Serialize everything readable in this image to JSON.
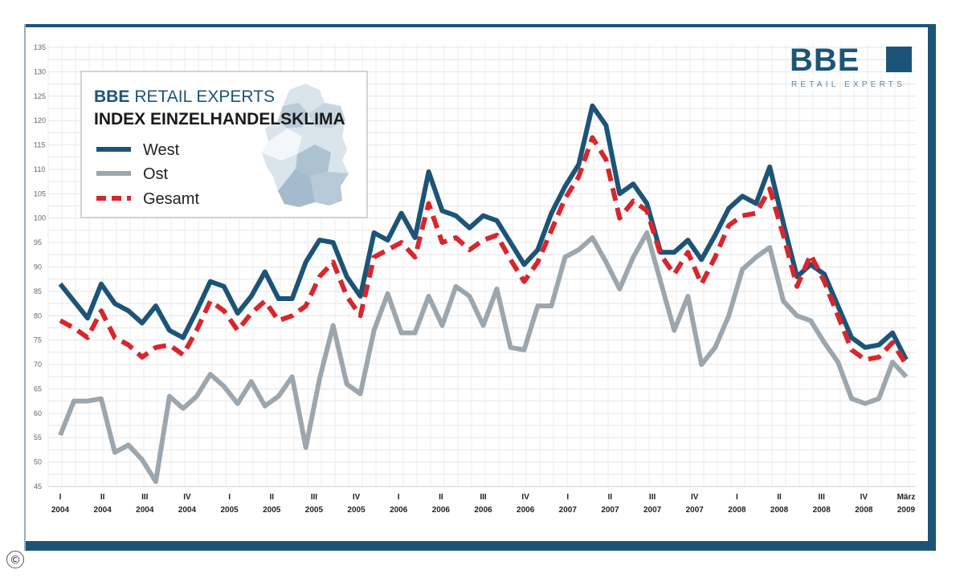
{
  "logo": {
    "brand": "BBE",
    "tagline": "RETAIL EXPERTS"
  },
  "legend": {
    "brand_prefix": "BBE",
    "brand_rest": "RETAIL EXPERTS",
    "title": "INDEX EINZELHANDELSKLIMA"
  },
  "copyright_symbol": "©",
  "colors": {
    "west": "#1c5478",
    "ost": "#9ba6ae",
    "gesamt": "#d8262c",
    "frame": "#1c5478",
    "grid": "#e3e3e3"
  },
  "chart_data": {
    "type": "line",
    "title": "INDEX EINZELHANDELSKLIMA",
    "ylim": [
      45,
      135
    ],
    "yticks": [
      45,
      50,
      55,
      60,
      65,
      70,
      75,
      80,
      85,
      90,
      95,
      100,
      105,
      110,
      115,
      120,
      125,
      130,
      135
    ],
    "grid": true,
    "legend_position": "top-left",
    "x_ticks": [
      {
        "q": "I",
        "y": "2004"
      },
      {
        "q": "II",
        "y": "2004"
      },
      {
        "q": "III",
        "y": "2004"
      },
      {
        "q": "IV",
        "y": "2004"
      },
      {
        "q": "I",
        "y": "2005"
      },
      {
        "q": "II",
        "y": "2005"
      },
      {
        "q": "III",
        "y": "2005"
      },
      {
        "q": "IV",
        "y": "2005"
      },
      {
        "q": "I",
        "y": "2006"
      },
      {
        "q": "II",
        "y": "2006"
      },
      {
        "q": "III",
        "y": "2006"
      },
      {
        "q": "IV",
        "y": "2006"
      },
      {
        "q": "I",
        "y": "2007"
      },
      {
        "q": "II",
        "y": "2007"
      },
      {
        "q": "III",
        "y": "2007"
      },
      {
        "q": "IV",
        "y": "2007"
      },
      {
        "q": "I",
        "y": "2008"
      },
      {
        "q": "II",
        "y": "2008"
      },
      {
        "q": "III",
        "y": "2008"
      },
      {
        "q": "IV",
        "y": "2008"
      },
      {
        "q": "März",
        "y": "2009"
      }
    ],
    "series": [
      {
        "name": "West",
        "style": "solid",
        "color": "#1c5478",
        "values": [
          86.5,
          83,
          79.5,
          86.5,
          82.5,
          81,
          78.5,
          82,
          77,
          75.5,
          81,
          87,
          86,
          80.5,
          84,
          89,
          83.5,
          83.5,
          91,
          95.5,
          95,
          88,
          84,
          97,
          95.5,
          101,
          96,
          109.5,
          101.5,
          100.5,
          98,
          100.5,
          99.5,
          95,
          90.5,
          93.5,
          101,
          106.5,
          111,
          123,
          119,
          105,
          107,
          103,
          93,
          93,
          95.5,
          91.5,
          96.5,
          102,
          104.5,
          103,
          110.5,
          99,
          88,
          90.5,
          88.5,
          82,
          75.5,
          73.5,
          74,
          76.5,
          71
        ]
      },
      {
        "name": "Ost",
        "style": "solid",
        "color": "#9ba6ae",
        "values": [
          55.5,
          62.5,
          62.5,
          63,
          52,
          53.5,
          50.5,
          46,
          63.5,
          61,
          63.5,
          68,
          65.5,
          62,
          66.5,
          61.5,
          63.5,
          67.5,
          53,
          67,
          78,
          66,
          64,
          77,
          84.5,
          76.5,
          76.5,
          84,
          78,
          86,
          84,
          78,
          85.5,
          73.5,
          73,
          82,
          82,
          92,
          93.5,
          96,
          91,
          85.5,
          92,
          97,
          87,
          77,
          84,
          70,
          73.5,
          80,
          89.5,
          92,
          94,
          83,
          80,
          79,
          74.5,
          70.5,
          63,
          62,
          63,
          70.5,
          67.5
        ]
      },
      {
        "name": "Gesamt",
        "style": "dashed",
        "color": "#d8262c",
        "values": [
          79,
          77.5,
          75.5,
          81,
          75.5,
          74,
          71.5,
          73.5,
          74,
          72,
          77,
          83,
          81,
          77,
          80.5,
          83,
          79,
          80,
          82,
          88,
          91,
          84,
          80,
          92,
          93.5,
          95,
          92,
          103,
          95,
          96,
          93.5,
          95.5,
          96.5,
          91.5,
          87,
          91,
          97.5,
          104,
          108.5,
          116.5,
          112,
          100,
          103.5,
          101.5,
          92.5,
          88.5,
          93,
          86.5,
          92,
          98.5,
          100.5,
          101,
          106,
          96.5,
          86,
          92.5,
          87,
          80,
          73,
          71,
          71.5,
          74.5,
          70
        ]
      }
    ]
  }
}
